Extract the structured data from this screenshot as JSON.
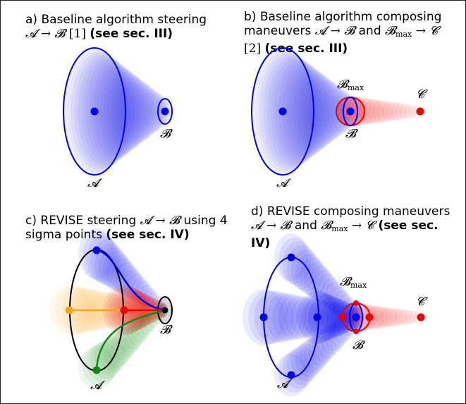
{
  "panels": {
    "a": {
      "prefix": "a) Baseline algorithm steering",
      "line2_math": "𝓐 → 𝓑",
      "cite": " [1] ",
      "bold": "(see sec. III)",
      "label_A": "𝓐",
      "label_B": "𝓑"
    },
    "b": {
      "line1": "b)  Baseline algorithm composing",
      "line2_text": "maneuvers ",
      "line2_math1": "𝓐 → 𝓑",
      "line2_and": " and ",
      "line2_math2": "𝓑",
      "line2_sub": "max",
      "line2_math3": " → 𝓒",
      "line3_cite": "[2] ",
      "bold": "(see sec. III)",
      "label_A": "𝓐",
      "label_B": "𝓑",
      "label_Bmax": "𝓑",
      "label_Bmax_sub": "max",
      "label_C": "𝓒"
    },
    "c": {
      "line1_text": "c) REVISE steering ",
      "line1_math": "𝓐 → 𝓑",
      "line1_rest": " using 4",
      "line2_text": "sigma points ",
      "bold": "(see sec. IV)",
      "label_A": "𝓐",
      "label_B": "𝓑"
    },
    "d": {
      "line1": "d) REVISE composing maneuvers",
      "line2_math1": "𝓐 → 𝓑",
      "line2_and": " and ",
      "line2_math2": "𝓑",
      "line2_sub": "max",
      "line2_math3": " → 𝓒",
      "bold1": " (see sec.",
      "bold2": "IV)",
      "label_A": "𝓐",
      "label_B": "𝓑",
      "label_Bmax": "𝓑",
      "label_Bmax_sub": "max",
      "label_C": "𝓒"
    }
  },
  "colors": {
    "blue": "#0000ee",
    "red": "#ee0000",
    "orange": "#ffa31a",
    "green": "#118811",
    "black": "#000000",
    "frame": "#222222"
  }
}
